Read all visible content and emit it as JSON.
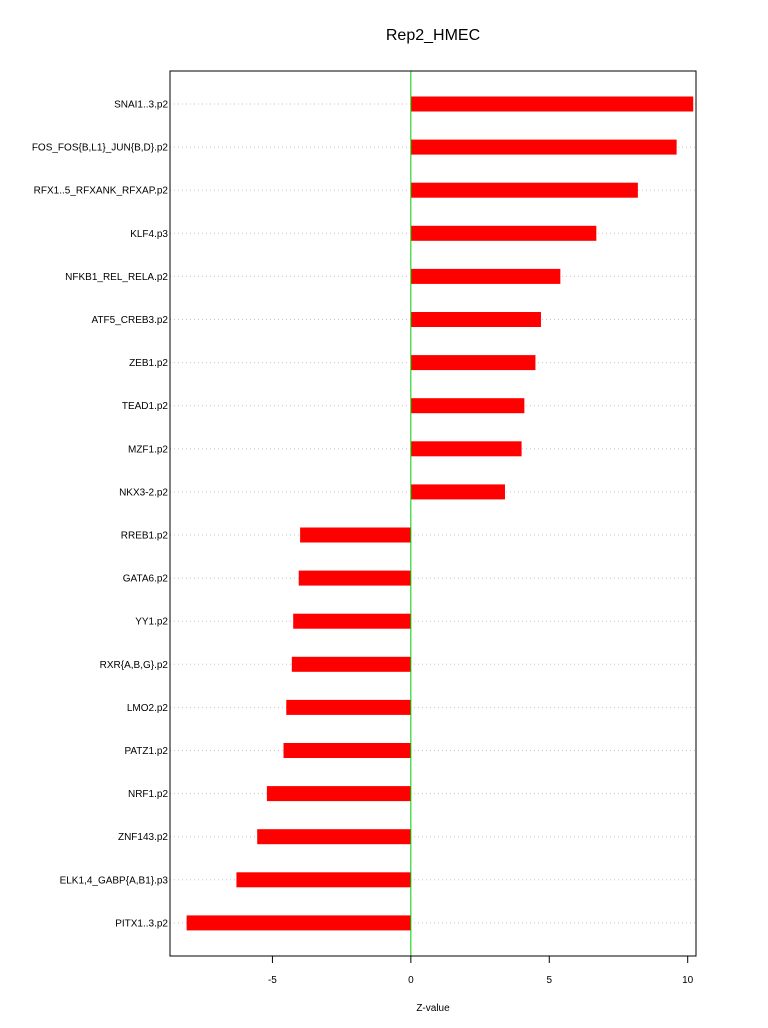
{
  "chart_data": {
    "type": "bar",
    "orientation": "horizontal",
    "title": "Rep2_HMEC",
    "xlabel": "Z-value",
    "ylabel": "",
    "xlim": [
      -8.7,
      10.3
    ],
    "xticks": [
      -5,
      0,
      5,
      10
    ],
    "grid": "horizontal dotted",
    "zero_line_color": "#00cc00",
    "bar_color": "#ff0000",
    "categories": [
      "SNAI1..3.p2",
      "FOS_FOS{B,L1}_JUN{B,D}.p2",
      "RFX1..5_RFXANK_RFXAP.p2",
      "KLF4.p3",
      "NFKB1_REL_RELA.p2",
      "ATF5_CREB3.p2",
      "ZEB1.p2",
      "TEAD1.p2",
      "MZF1.p2",
      "NKX3-2.p2",
      "RREB1.p2",
      "GATA6.p2",
      "YY1.p2",
      "RXR{A,B,G}.p2",
      "LMO2.p2",
      "PATZ1.p2",
      "NRF1.p2",
      "ZNF143.p2",
      "ELK1,4_GABP{A,B1}.p3",
      "PITX1..3.p2"
    ],
    "values": [
      10.2,
      9.6,
      8.2,
      6.7,
      5.4,
      4.7,
      4.5,
      4.1,
      4.0,
      3.4,
      -4.0,
      -4.05,
      -4.25,
      -4.3,
      -4.5,
      -4.6,
      -5.2,
      -5.55,
      -6.3,
      -8.1
    ]
  }
}
